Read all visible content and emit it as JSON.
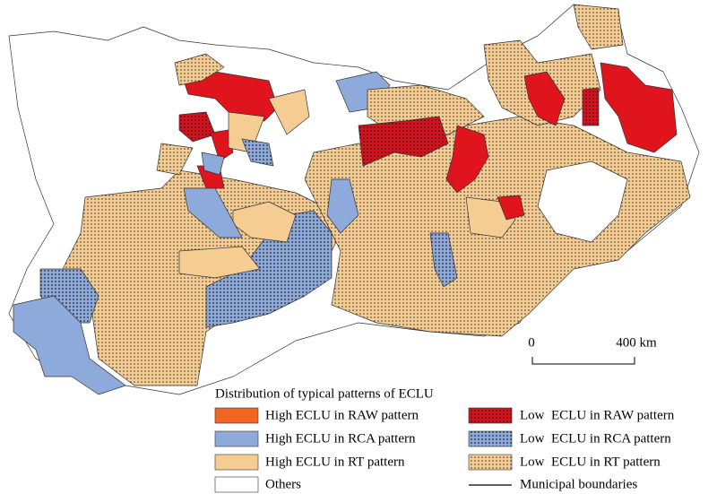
{
  "legend": {
    "title": "Distribution of typical patterns of ECLU",
    "items": [
      "High ECLU in RAW pattern",
      "High ECLU in RCA pattern",
      "High ECLU in RT pattern",
      "Others",
      "Low  ECLU in RAW pattern",
      "Low  ECLU in RCA pattern",
      "Low  ECLU in RT pattern",
      "Municipal boundaries"
    ]
  },
  "scale_bar": {
    "start_label": "0",
    "end_label": "400 km"
  }
}
